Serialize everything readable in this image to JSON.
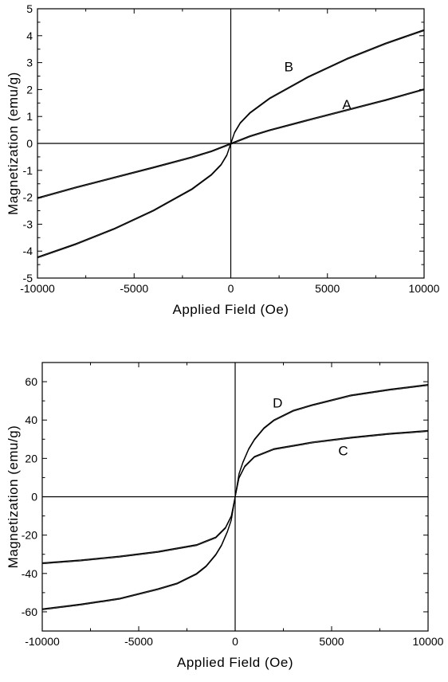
{
  "chart_data": [
    {
      "type": "line",
      "xlabel": "Applied Field (Oe)",
      "ylabel": "Magnetization (emu/g)",
      "xlim": [
        -10000,
        10000
      ],
      "ylim": [
        -5,
        5
      ],
      "x_ticks": [
        -10000,
        -5000,
        0,
        5000,
        10000
      ],
      "y_ticks": [
        -5,
        -4,
        -3,
        -2,
        -1,
        0,
        1,
        2,
        3,
        4,
        5
      ],
      "series": [
        {
          "name": "A",
          "x": [
            -10000,
            -8000,
            -6000,
            -4000,
            -2000,
            -1000,
            0,
            1000,
            2000,
            4000,
            6000,
            8000,
            10000
          ],
          "y": [
            -2.02,
            -1.62,
            -1.25,
            -0.88,
            -0.5,
            -0.28,
            0,
            0.28,
            0.5,
            0.88,
            1.25,
            1.62,
            2.02
          ],
          "label_at": [
            6000,
            1.45
          ]
        },
        {
          "name": "B",
          "x": [
            -10000,
            -8000,
            -6000,
            -4000,
            -2000,
            -1000,
            -500,
            -200,
            0,
            200,
            500,
            1000,
            2000,
            4000,
            6000,
            8000,
            10000
          ],
          "y": [
            -4.22,
            -3.72,
            -3.15,
            -2.48,
            -1.68,
            -1.15,
            -0.78,
            -0.42,
            0,
            0.42,
            0.78,
            1.15,
            1.68,
            2.48,
            3.15,
            3.72,
            4.22
          ],
          "label_at": [
            3000,
            2.85
          ]
        }
      ]
    },
    {
      "type": "line",
      "xlabel": "Applied Field (Oe)",
      "ylabel": "Magnetization (emu/g)",
      "xlim": [
        -10000,
        10000
      ],
      "ylim": [
        -70,
        70
      ],
      "x_ticks": [
        -10000,
        -5000,
        0,
        5000,
        10000
      ],
      "y_ticks": [
        -60,
        -40,
        -20,
        0,
        20,
        40,
        60
      ],
      "series": [
        {
          "name": "C",
          "x": [
            -10000,
            -8000,
            -6000,
            -4000,
            -2000,
            -1000,
            -500,
            -200,
            0,
            200,
            500,
            1000,
            2000,
            4000,
            6000,
            8000,
            10000
          ],
          "y": [
            -34.5,
            -33,
            -31,
            -28.5,
            -25,
            -21,
            -16,
            -10,
            0,
            10,
            16,
            21,
            25,
            28.5,
            31,
            33,
            34.5
          ],
          "label_at": [
            5600,
            24
          ]
        },
        {
          "name": "D",
          "x": [
            -10000,
            -8000,
            -6000,
            -4000,
            -3000,
            -2000,
            -1500,
            -1000,
            -700,
            -400,
            -200,
            0,
            200,
            400,
            700,
            1000,
            1500,
            2000,
            3000,
            4000,
            6000,
            8000,
            10000
          ],
          "y": [
            -58.5,
            -56,
            -53,
            -48,
            -45,
            -40,
            -36,
            -30,
            -25,
            -18,
            -12,
            0,
            12,
            18,
            25,
            30,
            36,
            40,
            45,
            48,
            53,
            56,
            58.5
          ],
          "label_at": [
            2200,
            49
          ]
        }
      ]
    }
  ]
}
